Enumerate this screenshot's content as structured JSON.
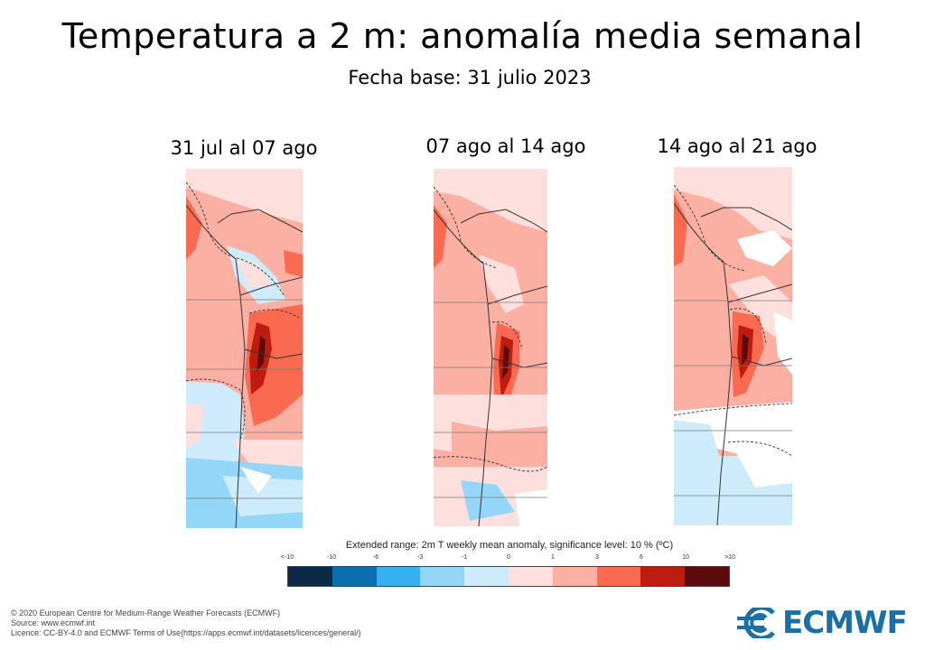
{
  "title": "Temperatura a 2 m: anomalía media semanal",
  "subtitle": "Fecha base: 31 julio 2023",
  "panels": [
    {
      "label": "31 jul al 07 ago"
    },
    {
      "label": "07 ago al 14 ago"
    },
    {
      "label": "14 ago al 21 ago"
    }
  ],
  "colorbar": {
    "caption": "Extended range: 2m T weekly mean anomaly, significance level: 10 % (ºC)",
    "tick_labels": [
      "<-10",
      "-10",
      "-6",
      "-3",
      "-1",
      "0",
      "1",
      "3",
      "6",
      "10",
      ">10"
    ],
    "colors": [
      "#0a2a45",
      "#0a6fae",
      "#35b0f0",
      "#94d6f8",
      "#cdebfa",
      "#fde0dd",
      "#fbb0a3",
      "#f96a50",
      "#c01b10",
      "#5b0b0b"
    ]
  },
  "footer": {
    "line1": "© 2020 European Centre for Medium-Range Weather Forecasts (ECMWF)",
    "line2": "Source: www.ecmwf.int",
    "line3": "Licence: CC-BY-4.0 and ECMWF Terms of Use(https://apps.ecmwf.int/datasets/licences/general/)"
  },
  "logo": {
    "text": "ECMWF",
    "color": "#1a6fa8"
  }
}
